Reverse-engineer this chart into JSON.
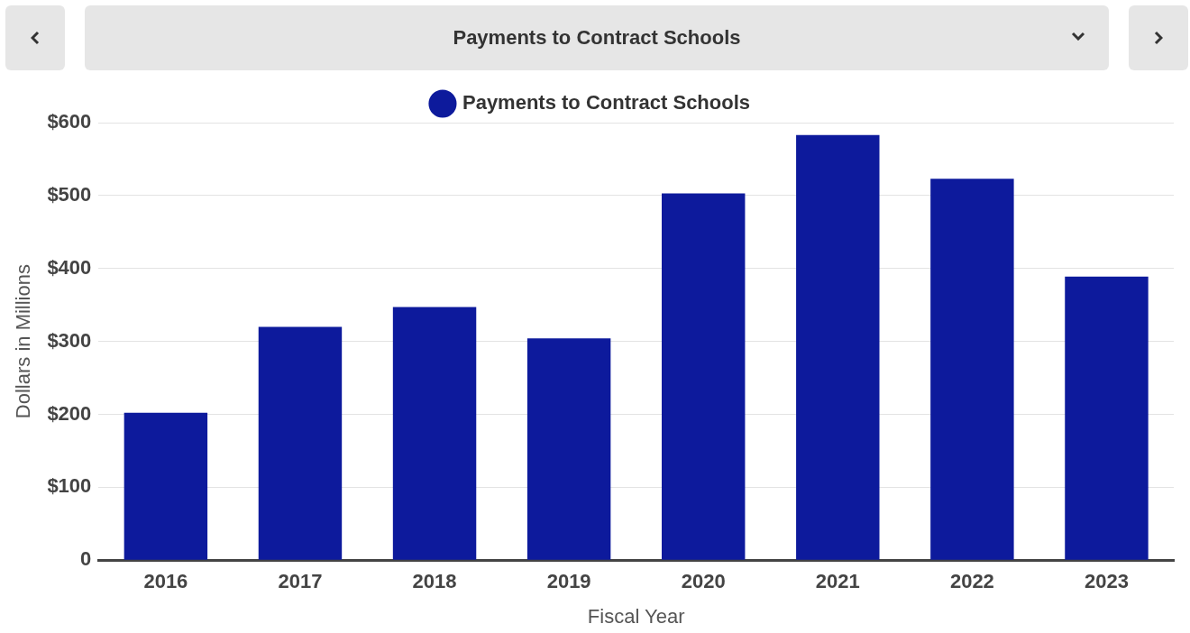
{
  "chart_data": {
    "type": "bar",
    "title": "Payments to Contract Schools",
    "xlabel": "Fiscal Year",
    "ylabel": "Dollars in Millions",
    "categories": [
      "2016",
      "2017",
      "2018",
      "2019",
      "2020",
      "2021",
      "2022",
      "2023"
    ],
    "series": [
      {
        "name": "Payments to Contract Schools",
        "color": "#0d1a9c",
        "values": [
          202,
          320,
          347,
          304,
          503,
          583,
          523,
          389
        ]
      }
    ],
    "ylim": [
      0,
      600
    ],
    "yticks": [
      {
        "value": 0,
        "label": "0"
      },
      {
        "value": 100,
        "label": "$100"
      },
      {
        "value": 200,
        "label": "$200"
      },
      {
        "value": 300,
        "label": "$300"
      },
      {
        "value": 400,
        "label": "$400"
      },
      {
        "value": 500,
        "label": "$500"
      },
      {
        "value": 600,
        "label": "$600"
      }
    ],
    "grid": "y",
    "legend": "top"
  }
}
